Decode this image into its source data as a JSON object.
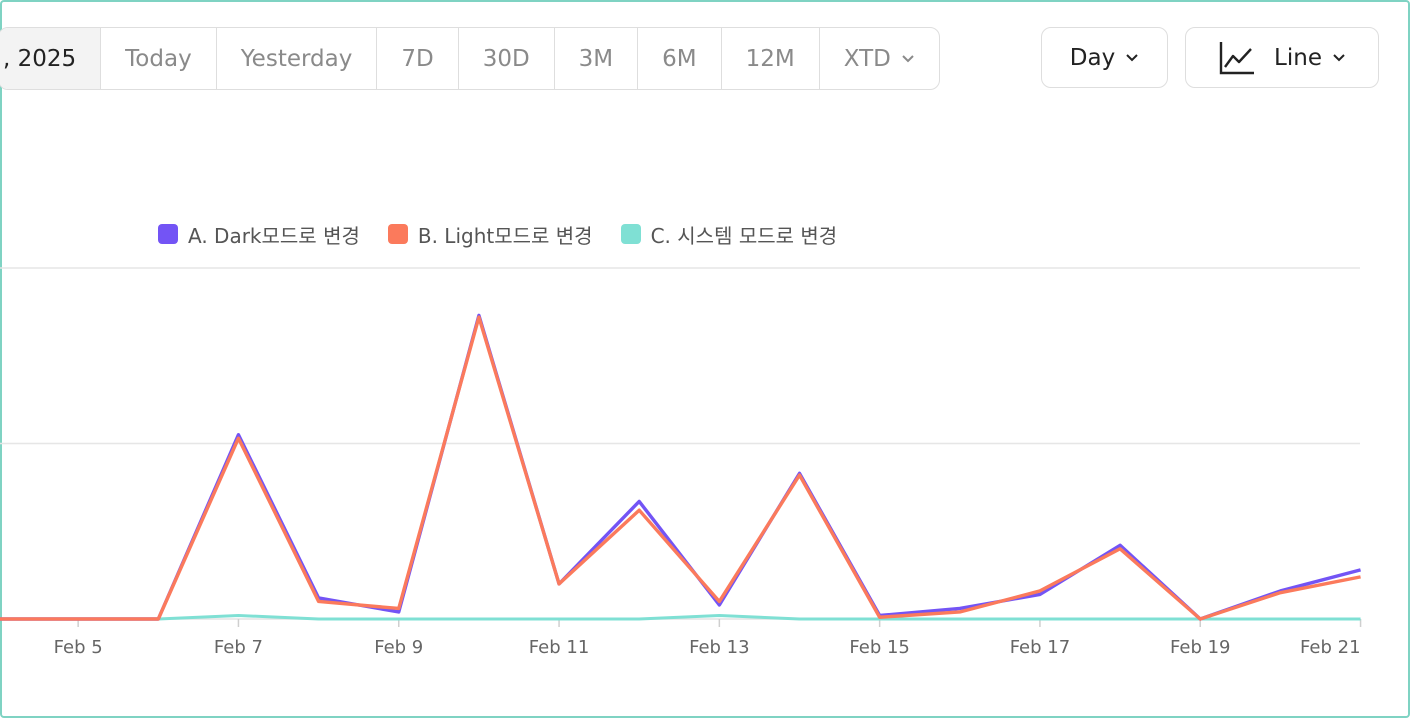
{
  "toolbar": {
    "date_label": ", 2025",
    "ranges": [
      "Today",
      "Yesterday",
      "7D",
      "30D",
      "3M",
      "6M",
      "12M"
    ],
    "xtd_label": "XTD",
    "interval_label": "Day",
    "chart_type_label": "Line",
    "chevron_icon": "chevron-down-icon",
    "line_chart_icon": "line-chart-icon"
  },
  "chart_data": {
    "type": "line",
    "x": [
      "Feb 4",
      "Feb 5",
      "Feb 6",
      "Feb 7",
      "Feb 8",
      "Feb 9",
      "Feb 10",
      "Feb 11",
      "Feb 12",
      "Feb 13",
      "Feb 14",
      "Feb 15",
      "Feb 16",
      "Feb 17",
      "Feb 18",
      "Feb 19",
      "Feb 20",
      "Feb 21"
    ],
    "x_tick_labels": [
      "Feb 5",
      "Feb 7",
      "Feb 9",
      "Feb 11",
      "Feb 13",
      "Feb 15",
      "Feb 17",
      "Feb 19",
      "Feb 21"
    ],
    "series": [
      {
        "name": "A. Dark모드로 변경",
        "color": "#7354f5",
        "values": [
          0,
          0,
          0,
          105,
          12,
          4,
          173,
          20,
          67,
          8,
          83,
          2,
          6,
          14,
          42,
          0,
          16,
          28
        ]
      },
      {
        "name": "B. Light모드로 변경",
        "color": "#fb7a5c",
        "values": [
          0,
          0,
          0,
          103,
          10,
          6,
          172,
          20,
          62,
          10,
          82,
          1,
          4,
          16,
          40,
          0,
          15,
          24
        ]
      },
      {
        "name": "C. 시스템 모드로 변경",
        "color": "#7fe0d4",
        "values": [
          0,
          0,
          0,
          2,
          0,
          0,
          0,
          0,
          0,
          2,
          0,
          0,
          0,
          0,
          0,
          0,
          0,
          0
        ]
      }
    ],
    "ylim": [
      0,
      200
    ],
    "grid": true,
    "legend_position": "top-left"
  }
}
